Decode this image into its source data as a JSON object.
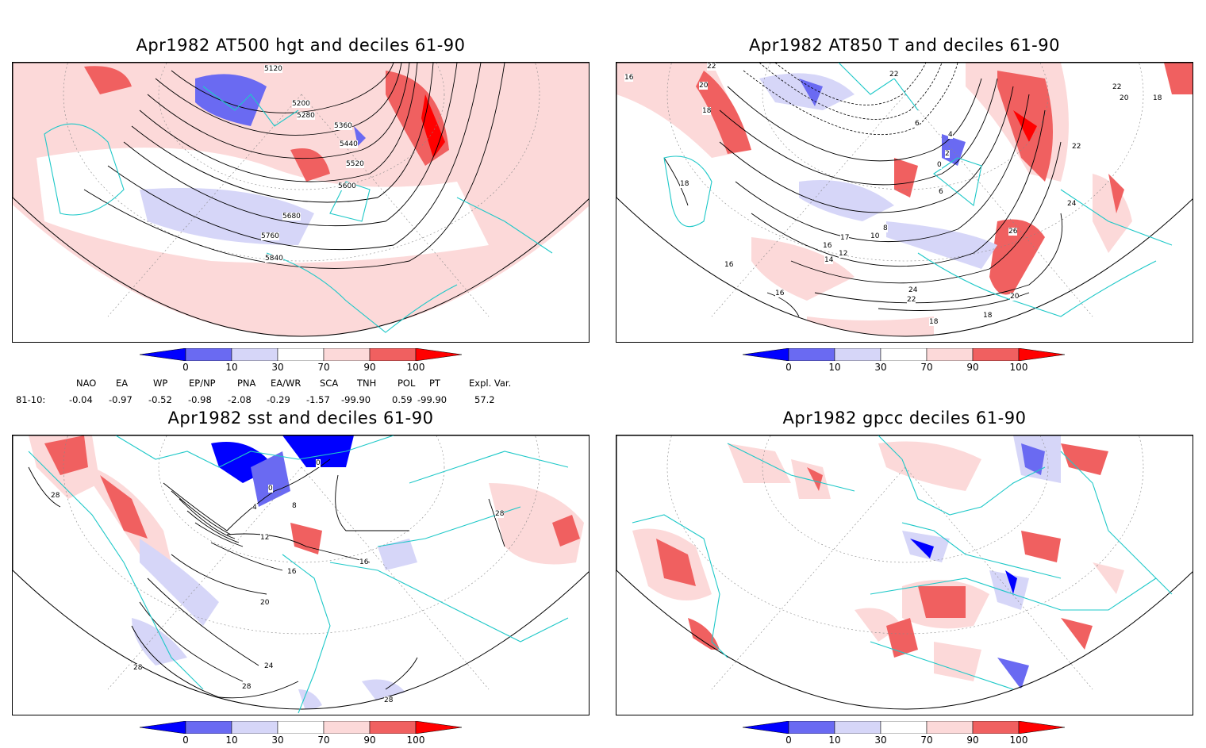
{
  "panels": [
    {
      "title": "Apr1982 AT500 hgt and deciles 61-90",
      "contour_labels": [
        "5120",
        "5200",
        "5280",
        "5360",
        "5440",
        "5520",
        "5600",
        "5680",
        "5760",
        "5840"
      ]
    },
    {
      "title": "Apr1982 AT850 T and deciles 61-90",
      "contour_labels": [
        "22",
        "20",
        "18",
        "18",
        "16",
        "16",
        "16",
        "2",
        "0",
        "4",
        "6",
        "6",
        "8",
        "10",
        "12",
        "14",
        "16",
        "17",
        "22",
        "24",
        "26",
        "24",
        "22",
        "20",
        "18",
        "18",
        "22",
        "22",
        "20",
        "18"
      ]
    },
    {
      "title": "Apr1982 sst and deciles 61-90",
      "contour_labels": [
        "28",
        "0",
        "0",
        "4",
        "8",
        "12",
        "16",
        "16",
        "20",
        "24",
        "28",
        "28",
        "28",
        "28"
      ]
    },
    {
      "title": "Apr1982 gpcc deciles 61-90",
      "contour_labels": []
    }
  ],
  "colorbar": {
    "ticks": [
      "0",
      "10",
      "30",
      "70",
      "90",
      "100"
    ],
    "colors": [
      "#0000ff",
      "#6a6af2",
      "#d6d6f8",
      "#ffffff",
      "#fcd9d9",
      "#f06060",
      "#ff0000"
    ]
  },
  "teleconnections": {
    "headers": [
      "NAO",
      "EA",
      "WP",
      "EP/NP",
      "PNA",
      "EA/WR",
      "SCA",
      "TNH",
      "POL",
      "PT",
      "Expl. Var."
    ],
    "row_label": "81-10:",
    "values": [
      "-0.04",
      "-0.97",
      "-0.52",
      "-0.98",
      "-2.08",
      "-0.29",
      "-1.57",
      "-99.90",
      "0.59",
      "-99.90",
      "57.2"
    ]
  },
  "map_colors": {
    "coast": "#1ec8c8",
    "grid": "#888888",
    "contour": "#000000"
  }
}
